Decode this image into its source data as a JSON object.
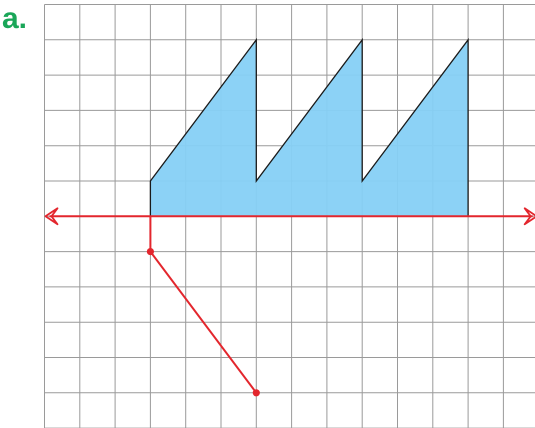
{
  "label": "a.",
  "grid": {
    "columns": 14,
    "rows": 12
  },
  "colors": {
    "label": "#1aa658",
    "grid": "#9a9a9a",
    "shape_fill": "#86d0f5",
    "shape_stroke": "#1a1a1a",
    "axis": "#e3262d",
    "segment": "#e3262d"
  },
  "shape": {
    "vertices": [
      [
        3,
        6
      ],
      [
        3,
        5
      ],
      [
        6,
        1
      ],
      [
        6,
        5
      ],
      [
        9,
        1
      ],
      [
        9,
        5
      ],
      [
        12,
        1
      ],
      [
        12,
        6
      ]
    ]
  },
  "axis_line": {
    "y": 6,
    "x_from": 0,
    "x_to": 14
  },
  "segment": {
    "vertical": {
      "from": [
        3,
        6
      ],
      "to": [
        3,
        7
      ]
    },
    "diagonal": {
      "from": [
        3,
        7
      ],
      "to": [
        6,
        11
      ]
    },
    "points": [
      [
        3,
        7
      ],
      [
        6,
        11
      ]
    ]
  }
}
